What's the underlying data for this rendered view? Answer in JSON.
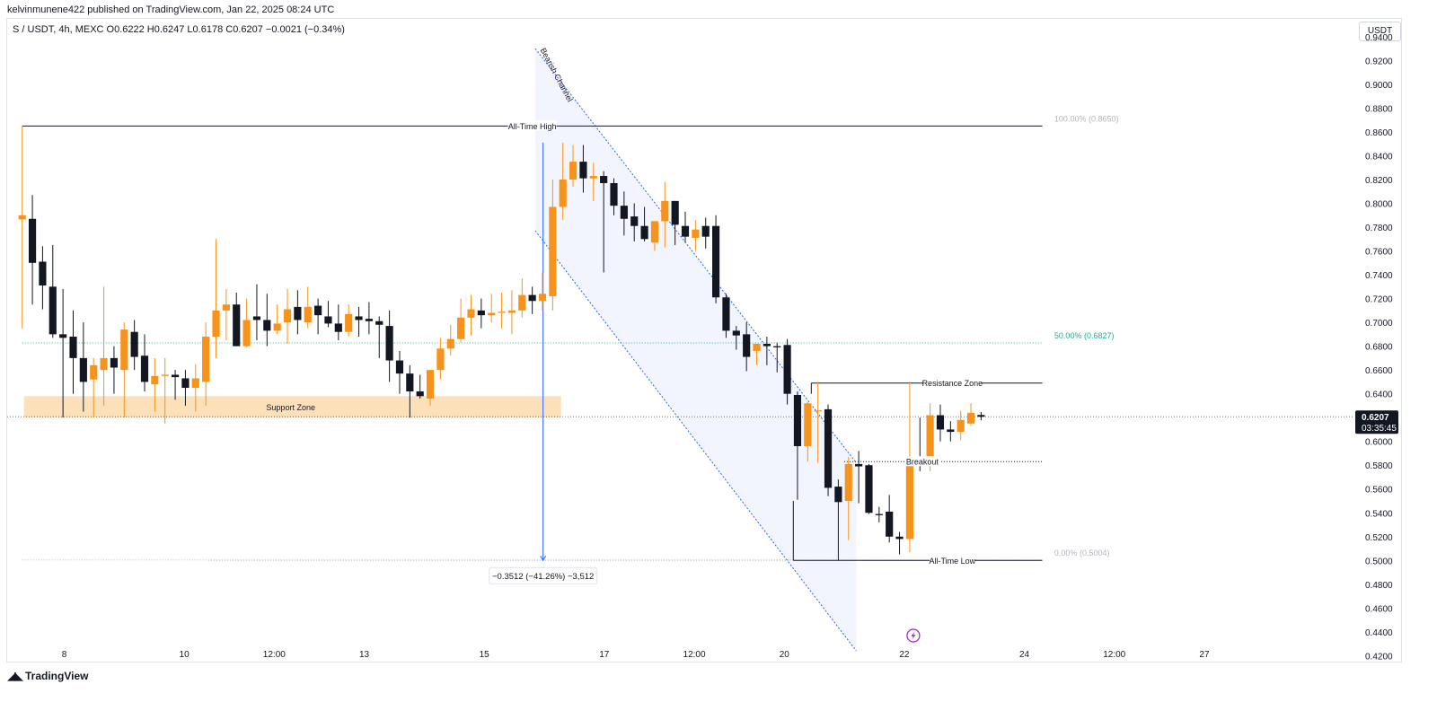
{
  "header": {
    "published": "kelvinmunene422 published on TradingView.com, Jan 22, 2025 08:24 UTC",
    "legend": "S / USDT, 4h, MEXC  O0.6222  H0.6247  L0.6178  C0.6207  −0.0021 (−0.34%)",
    "currency": "USDT"
  },
  "footer": {
    "brand": "TradingView"
  },
  "chart_data": {
    "type": "candlestick",
    "symbol": "S / USDT",
    "interval": "4h",
    "exchange": "MEXC",
    "ohlc_last": {
      "open": 0.6222,
      "high": 0.6247,
      "low": 0.6178,
      "close": 0.6207,
      "change": -0.0021,
      "change_pct": -0.34
    },
    "y_axis": {
      "range": [
        0.415,
        0.955
      ],
      "ticks": [
        "0.9400",
        "0.9200",
        "0.9000",
        "0.8800",
        "0.8600",
        "0.8400",
        "0.8200",
        "0.8000",
        "0.7800",
        "0.7600",
        "0.7400",
        "0.7200",
        "0.7000",
        "0.6800",
        "0.6600",
        "0.6400",
        "0.6200",
        "0.6000",
        "0.5800",
        "0.5600",
        "0.5400",
        "0.5200",
        "0.5000",
        "0.4800",
        "0.4600",
        "0.4400",
        "0.4200"
      ],
      "tick_values": [
        0.94,
        0.92,
        0.9,
        0.88,
        0.86,
        0.84,
        0.82,
        0.8,
        0.78,
        0.76,
        0.74,
        0.72,
        0.7,
        0.68,
        0.66,
        0.64,
        0.62,
        0.6,
        0.58,
        0.56,
        0.54,
        0.52,
        0.5,
        0.48,
        0.46,
        0.44,
        0.42
      ]
    },
    "x_axis": {
      "range": [
        -2.5,
        222
      ],
      "ticks": [
        {
          "label": "8",
          "x": 7
        },
        {
          "label": "10",
          "x": 27
        },
        {
          "label": "12:00",
          "x": 42
        },
        {
          "label": "13",
          "x": 57
        },
        {
          "label": "15",
          "x": 77
        },
        {
          "label": "17",
          "x": 97
        },
        {
          "label": "12:00",
          "x": 112
        },
        {
          "label": "20",
          "x": 127
        },
        {
          "label": "22",
          "x": 147
        },
        {
          "label": "24",
          "x": 167
        },
        {
          "label": "12:00",
          "x": 182
        },
        {
          "label": "27",
          "x": 197
        }
      ]
    },
    "last_price": {
      "value": 0.6207,
      "label": "0.6207",
      "countdown": "03:35:45"
    },
    "candles": [
      [
        0.7865,
        0.865,
        0.695,
        0.79
      ],
      [
        0.787,
        0.807,
        0.715,
        0.75
      ],
      [
        0.751,
        0.764,
        0.711,
        0.731
      ],
      [
        0.73,
        0.765,
        0.687,
        0.69
      ],
      [
        0.69,
        0.728,
        0.62,
        0.687
      ],
      [
        0.688,
        0.71,
        0.64,
        0.67
      ],
      [
        0.67,
        0.7,
        0.625,
        0.65
      ],
      [
        0.652,
        0.67,
        0.62,
        0.664
      ],
      [
        0.66,
        0.73,
        0.63,
        0.67
      ],
      [
        0.67,
        0.68,
        0.64,
        0.662
      ],
      [
        0.66,
        0.7,
        0.62,
        0.694
      ],
      [
        0.692,
        0.702,
        0.66,
        0.671
      ],
      [
        0.672,
        0.69,
        0.642,
        0.65
      ],
      [
        0.648,
        0.67,
        0.625,
        0.655
      ],
      [
        0.655,
        0.67,
        0.615,
        0.656
      ],
      [
        0.656,
        0.66,
        0.635,
        0.654
      ],
      [
        0.653,
        0.66,
        0.63,
        0.645
      ],
      [
        0.645,
        0.665,
        0.625,
        0.653
      ],
      [
        0.65,
        0.7,
        0.63,
        0.688
      ],
      [
        0.688,
        0.77,
        0.67,
        0.71
      ],
      [
        0.71,
        0.728,
        0.685,
        0.715
      ],
      [
        0.715,
        0.725,
        0.68,
        0.68
      ],
      [
        0.68,
        0.72,
        0.679,
        0.702
      ],
      [
        0.705,
        0.732,
        0.685,
        0.702
      ],
      [
        0.702,
        0.724,
        0.68,
        0.693
      ],
      [
        0.693,
        0.715,
        0.69,
        0.699
      ],
      [
        0.7,
        0.728,
        0.682,
        0.711
      ],
      [
        0.713,
        0.727,
        0.69,
        0.702
      ],
      [
        0.7,
        0.73,
        0.695,
        0.713
      ],
      [
        0.714,
        0.72,
        0.69,
        0.706
      ],
      [
        0.705,
        0.718,
        0.696,
        0.699
      ],
      [
        0.699,
        0.715,
        0.685,
        0.692
      ],
      [
        0.692,
        0.715,
        0.688,
        0.707
      ],
      [
        0.705,
        0.713,
        0.688,
        0.702
      ],
      [
        0.703,
        0.717,
        0.69,
        0.701
      ],
      [
        0.701,
        0.705,
        0.67,
        0.698
      ],
      [
        0.697,
        0.71,
        0.65,
        0.668
      ],
      [
        0.668,
        0.676,
        0.64,
        0.657
      ],
      [
        0.657,
        0.664,
        0.62,
        0.642
      ],
      [
        0.642,
        0.656,
        0.636,
        0.638
      ],
      [
        0.636,
        0.659,
        0.63,
        0.66
      ],
      [
        0.66,
        0.687,
        0.652,
        0.678
      ],
      [
        0.678,
        0.698,
        0.672,
        0.686
      ],
      [
        0.686,
        0.72,
        0.683,
        0.704
      ],
      [
        0.704,
        0.723,
        0.689,
        0.711
      ],
      [
        0.71,
        0.72,
        0.695,
        0.706
      ],
      [
        0.706,
        0.724,
        0.7,
        0.708
      ],
      [
        0.708,
        0.725,
        0.695,
        0.709
      ],
      [
        0.708,
        0.727,
        0.69,
        0.71
      ],
      [
        0.71,
        0.737,
        0.704,
        0.723
      ],
      [
        0.723,
        0.73,
        0.707,
        0.718
      ],
      [
        0.718,
        0.742,
        0.71,
        0.724
      ],
      [
        0.722,
        0.82,
        0.71,
        0.797
      ],
      [
        0.797,
        0.851,
        0.786,
        0.82
      ],
      [
        0.82,
        0.849,
        0.814,
        0.835
      ],
      [
        0.835,
        0.849,
        0.809,
        0.821
      ],
      [
        0.821,
        0.834,
        0.802,
        0.823
      ],
      [
        0.823,
        0.827,
        0.742,
        0.817
      ],
      [
        0.817,
        0.821,
        0.79,
        0.798
      ],
      [
        0.798,
        0.81,
        0.773,
        0.787
      ],
      [
        0.789,
        0.8,
        0.768,
        0.781
      ],
      [
        0.781,
        0.797,
        0.768,
        0.77
      ],
      [
        0.767,
        0.785,
        0.76,
        0.785
      ],
      [
        0.785,
        0.818,
        0.763,
        0.802
      ],
      [
        0.802,
        0.802,
        0.765,
        0.782
      ],
      [
        0.781,
        0.793,
        0.767,
        0.772
      ],
      [
        0.771,
        0.786,
        0.76,
        0.778
      ],
      [
        0.781,
        0.788,
        0.762,
        0.772
      ],
      [
        0.781,
        0.79,
        0.716,
        0.721
      ],
      [
        0.721,
        0.724,
        0.687,
        0.693
      ],
      [
        0.693,
        0.697,
        0.677,
        0.689
      ],
      [
        0.69,
        0.7,
        0.659,
        0.671
      ],
      [
        0.676,
        0.682,
        0.664,
        0.682
      ],
      [
        0.682,
        0.688,
        0.664,
        0.68
      ],
      [
        0.68,
        0.683,
        0.658,
        0.679
      ],
      [
        0.681,
        0.686,
        0.631,
        0.64
      ],
      [
        0.639,
        0.642,
        0.551,
        0.596
      ],
      [
        0.596,
        0.633,
        0.583,
        0.632
      ],
      [
        0.625,
        0.65,
        0.582,
        0.626
      ],
      [
        0.627,
        0.631,
        0.554,
        0.561
      ],
      [
        0.562,
        0.568,
        0.5,
        0.549
      ],
      [
        0.55,
        0.587,
        0.517,
        0.581
      ],
      [
        0.581,
        0.592,
        0.548,
        0.579
      ],
      [
        0.58,
        0.581,
        0.539,
        0.54
      ],
      [
        0.539,
        0.545,
        0.532,
        0.538
      ],
      [
        0.541,
        0.555,
        0.515,
        0.52
      ],
      [
        0.52,
        0.524,
        0.505,
        0.518
      ],
      [
        0.518,
        0.65,
        0.507,
        0.587
      ],
      [
        0.586,
        0.62,
        0.575,
        0.585
      ],
      [
        0.584,
        0.632,
        0.575,
        0.622
      ],
      [
        0.622,
        0.631,
        0.6,
        0.61
      ],
      [
        0.61,
        0.617,
        0.6,
        0.608
      ],
      [
        0.608,
        0.626,
        0.601,
        0.618
      ],
      [
        0.615,
        0.632,
        0.613,
        0.624
      ],
      [
        0.6222,
        0.6247,
        0.6178,
        0.6207
      ]
    ],
    "candle_start_x": 0,
    "candle_step": 1.7,
    "colors": {
      "up": "#f7931a",
      "down": "#131722",
      "fib": "#b2b5be",
      "fib_mid": "#22ab94",
      "channel": "#2962ff",
      "support": "#fbe0b9"
    },
    "annotations": {
      "all_time_high": {
        "label": "All-Time High",
        "price": 0.865
      },
      "all_time_low": {
        "label": "All-Time Low",
        "price": 0.5
      },
      "fib_levels": [
        {
          "label": "100.00% (0.8650)",
          "price": 0.865
        },
        {
          "label": "50.00% (0.6827)",
          "price": 0.6827
        },
        {
          "label": "0.00% (0.5004)",
          "price": 0.5004
        }
      ],
      "support_zone": {
        "label": "Support Zone",
        "low": 0.62,
        "high": 0.638,
        "x_start": 0,
        "x_end": 89.5
      },
      "resistance_zone": {
        "label": "Resistance Zone",
        "price": 0.649
      },
      "breakout": {
        "label": "Breakout",
        "price": 0.583
      },
      "channel": {
        "label": "Bearish Channel"
      },
      "measure": {
        "label": "−0.3512 (−41.26%) −3,512",
        "from": 0.851,
        "to": 0.5
      }
    }
  }
}
